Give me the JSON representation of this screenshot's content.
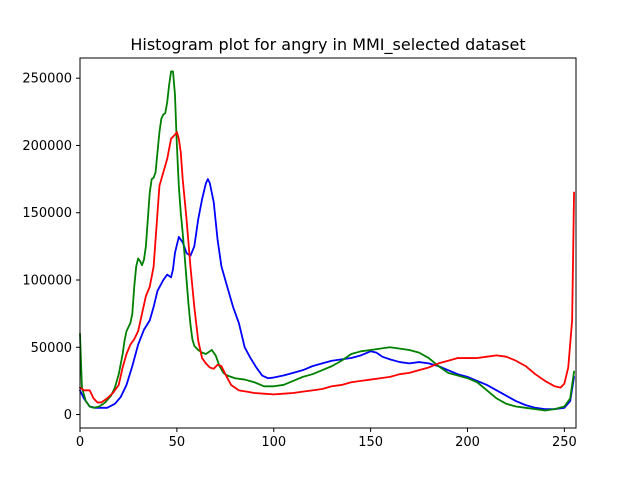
{
  "chart_data": {
    "type": "line",
    "title": "Histogram plot for angry in MMI_selected dataset",
    "xlabel": "",
    "ylabel": "",
    "xlim": [
      0,
      256
    ],
    "ylim": [
      -10000,
      265000
    ],
    "x_ticks": [
      0,
      50,
      100,
      150,
      200,
      250
    ],
    "y_ticks": [
      0,
      50000,
      100000,
      150000,
      200000,
      250000
    ],
    "grid": false,
    "legend": "none",
    "series": [
      {
        "color": "#0000ff",
        "points": [
          [
            0,
            18000
          ],
          [
            2,
            12000
          ],
          [
            5,
            6000
          ],
          [
            8,
            5000
          ],
          [
            10,
            5000
          ],
          [
            14,
            5000
          ],
          [
            18,
            8000
          ],
          [
            21,
            13000
          ],
          [
            24,
            22000
          ],
          [
            27,
            36000
          ],
          [
            30,
            52000
          ],
          [
            33,
            63000
          ],
          [
            36,
            70000
          ],
          [
            38,
            80000
          ],
          [
            40,
            92000
          ],
          [
            43,
            100000
          ],
          [
            45,
            104000
          ],
          [
            47,
            102000
          ],
          [
            48,
            108000
          ],
          [
            49,
            120000
          ],
          [
            51,
            132000
          ],
          [
            53,
            128000
          ],
          [
            55,
            120000
          ],
          [
            57,
            118000
          ],
          [
            59,
            125000
          ],
          [
            61,
            145000
          ],
          [
            63,
            160000
          ],
          [
            65,
            172000
          ],
          [
            66,
            175000
          ],
          [
            67,
            172000
          ],
          [
            69,
            158000
          ],
          [
            71,
            130000
          ],
          [
            73,
            110000
          ],
          [
            76,
            95000
          ],
          [
            79,
            80000
          ],
          [
            82,
            68000
          ],
          [
            85,
            50000
          ],
          [
            88,
            42000
          ],
          [
            91,
            35000
          ],
          [
            94,
            29000
          ],
          [
            97,
            27000
          ],
          [
            100,
            27500
          ],
          [
            105,
            29000
          ],
          [
            110,
            31000
          ],
          [
            115,
            33000
          ],
          [
            120,
            36000
          ],
          [
            125,
            38000
          ],
          [
            130,
            40000
          ],
          [
            135,
            41000
          ],
          [
            140,
            42000
          ],
          [
            145,
            44000
          ],
          [
            150,
            47000
          ],
          [
            153,
            46000
          ],
          [
            156,
            43000
          ],
          [
            160,
            41000
          ],
          [
            165,
            39000
          ],
          [
            170,
            38000
          ],
          [
            175,
            39000
          ],
          [
            180,
            38000
          ],
          [
            185,
            36000
          ],
          [
            190,
            33000
          ],
          [
            195,
            30000
          ],
          [
            200,
            28000
          ],
          [
            205,
            25000
          ],
          [
            210,
            22000
          ],
          [
            215,
            18000
          ],
          [
            220,
            14000
          ],
          [
            225,
            10000
          ],
          [
            230,
            7000
          ],
          [
            235,
            5000
          ],
          [
            240,
            4000
          ],
          [
            245,
            4000
          ],
          [
            250,
            5000
          ],
          [
            253,
            10000
          ],
          [
            255,
            28000
          ]
        ]
      },
      {
        "color": "#008000",
        "points": [
          [
            0,
            60000
          ],
          [
            1,
            20000
          ],
          [
            3,
            10000
          ],
          [
            5,
            6000
          ],
          [
            7,
            5000
          ],
          [
            10,
            6000
          ],
          [
            13,
            9000
          ],
          [
            16,
            14000
          ],
          [
            18,
            20000
          ],
          [
            20,
            30000
          ],
          [
            22,
            45000
          ],
          [
            23,
            55000
          ],
          [
            24,
            62000
          ],
          [
            26,
            68000
          ],
          [
            27,
            75000
          ],
          [
            28,
            95000
          ],
          [
            29,
            110000
          ],
          [
            30,
            116000
          ],
          [
            31,
            114000
          ],
          [
            32,
            111000
          ],
          [
            33,
            115000
          ],
          [
            34,
            125000
          ],
          [
            35,
            145000
          ],
          [
            36,
            165000
          ],
          [
            37,
            175000
          ],
          [
            38,
            176000
          ],
          [
            39,
            180000
          ],
          [
            40,
            195000
          ],
          [
            41,
            210000
          ],
          [
            42,
            220000
          ],
          [
            43,
            223000
          ],
          [
            44,
            224000
          ],
          [
            45,
            232000
          ],
          [
            46,
            245000
          ],
          [
            47,
            255000
          ],
          [
            48,
            255000
          ],
          [
            49,
            238000
          ],
          [
            50,
            200000
          ],
          [
            51,
            170000
          ],
          [
            52,
            150000
          ],
          [
            53,
            135000
          ],
          [
            54,
            118000
          ],
          [
            55,
            100000
          ],
          [
            56,
            82000
          ],
          [
            57,
            67000
          ],
          [
            58,
            56000
          ],
          [
            59,
            51000
          ],
          [
            61,
            48000
          ],
          [
            63,
            46000
          ],
          [
            65,
            45000
          ],
          [
            67,
            47000
          ],
          [
            68,
            48000
          ],
          [
            70,
            44000
          ],
          [
            72,
            36000
          ],
          [
            74,
            31000
          ],
          [
            76,
            29000
          ],
          [
            80,
            27000
          ],
          [
            85,
            26000
          ],
          [
            90,
            24000
          ],
          [
            95,
            21000
          ],
          [
            100,
            21000
          ],
          [
            105,
            22000
          ],
          [
            110,
            25000
          ],
          [
            115,
            28000
          ],
          [
            120,
            30000
          ],
          [
            125,
            33000
          ],
          [
            130,
            36000
          ],
          [
            135,
            40000
          ],
          [
            140,
            45000
          ],
          [
            145,
            47000
          ],
          [
            150,
            48000
          ],
          [
            155,
            49000
          ],
          [
            160,
            50000
          ],
          [
            165,
            49000
          ],
          [
            170,
            48000
          ],
          [
            175,
            46000
          ],
          [
            180,
            42000
          ],
          [
            185,
            36000
          ],
          [
            190,
            31000
          ],
          [
            195,
            29000
          ],
          [
            200,
            27000
          ],
          [
            205,
            24000
          ],
          [
            210,
            18000
          ],
          [
            215,
            12000
          ],
          [
            220,
            8000
          ],
          [
            225,
            6000
          ],
          [
            230,
            5000
          ],
          [
            235,
            4000
          ],
          [
            240,
            3000
          ],
          [
            245,
            4000
          ],
          [
            250,
            6000
          ],
          [
            253,
            12000
          ],
          [
            255,
            32000
          ]
        ]
      },
      {
        "color": "#ff0000",
        "points": [
          [
            0,
            20000
          ],
          [
            2,
            18000
          ],
          [
            5,
            18000
          ],
          [
            7,
            12000
          ],
          [
            9,
            9000
          ],
          [
            11,
            9000
          ],
          [
            14,
            12000
          ],
          [
            17,
            16000
          ],
          [
            20,
            22000
          ],
          [
            22,
            35000
          ],
          [
            24,
            45000
          ],
          [
            26,
            52000
          ],
          [
            28,
            56000
          ],
          [
            30,
            62000
          ],
          [
            32,
            75000
          ],
          [
            34,
            88000
          ],
          [
            36,
            95000
          ],
          [
            38,
            110000
          ],
          [
            40,
            150000
          ],
          [
            41,
            170000
          ],
          [
            43,
            180000
          ],
          [
            45,
            190000
          ],
          [
            47,
            205000
          ],
          [
            49,
            208000
          ],
          [
            50,
            210000
          ],
          [
            51,
            205000
          ],
          [
            52,
            195000
          ],
          [
            53,
            175000
          ],
          [
            55,
            145000
          ],
          [
            57,
            110000
          ],
          [
            59,
            80000
          ],
          [
            61,
            55000
          ],
          [
            63,
            42000
          ],
          [
            65,
            38000
          ],
          [
            67,
            35000
          ],
          [
            69,
            34000
          ],
          [
            71,
            37000
          ],
          [
            73,
            36000
          ],
          [
            75,
            30000
          ],
          [
            78,
            22000
          ],
          [
            82,
            18000
          ],
          [
            86,
            17000
          ],
          [
            90,
            16000
          ],
          [
            95,
            15500
          ],
          [
            100,
            15000
          ],
          [
            105,
            15500
          ],
          [
            110,
            16000
          ],
          [
            115,
            17000
          ],
          [
            120,
            18000
          ],
          [
            125,
            19000
          ],
          [
            130,
            21000
          ],
          [
            135,
            22000
          ],
          [
            140,
            24000
          ],
          [
            145,
            25000
          ],
          [
            150,
            26000
          ],
          [
            155,
            27000
          ],
          [
            160,
            28000
          ],
          [
            165,
            30000
          ],
          [
            170,
            31000
          ],
          [
            175,
            33000
          ],
          [
            180,
            35000
          ],
          [
            185,
            38000
          ],
          [
            190,
            40000
          ],
          [
            195,
            42000
          ],
          [
            200,
            42000
          ],
          [
            205,
            42000
          ],
          [
            210,
            43000
          ],
          [
            215,
            44000
          ],
          [
            220,
            43000
          ],
          [
            225,
            40000
          ],
          [
            230,
            36000
          ],
          [
            235,
            30000
          ],
          [
            240,
            25000
          ],
          [
            245,
            21000
          ],
          [
            248,
            20000
          ],
          [
            250,
            23000
          ],
          [
            252,
            35000
          ],
          [
            254,
            70000
          ],
          [
            255,
            165000
          ]
        ]
      }
    ]
  }
}
